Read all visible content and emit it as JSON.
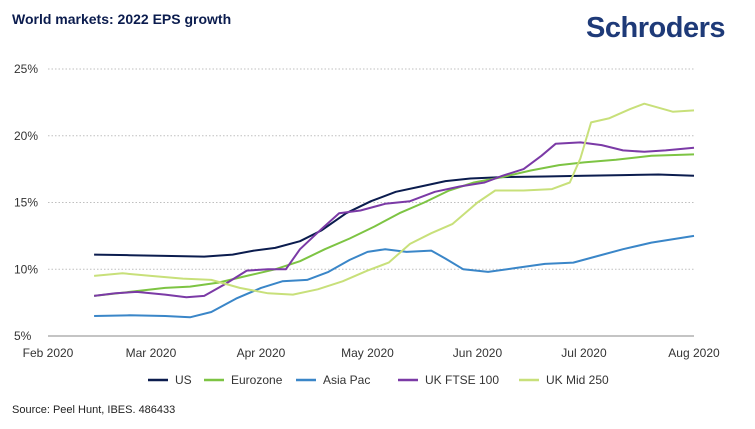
{
  "title": "World markets: 2022 EPS growth",
  "logo": "Schroders",
  "source": "Source: Peel Hunt, IBES. 486433",
  "chart_data": {
    "type": "line",
    "title": "World markets: 2022 EPS growth",
    "xlabel": "",
    "ylabel": "",
    "x_ticks": [
      "Feb 2020",
      "Mar 2020",
      "Apr 2020",
      "May 2020",
      "Jun 2020",
      "Jul 2020",
      "Aug 2020"
    ],
    "y_ticks": [
      "5%",
      "10%",
      "15%",
      "20%",
      "25%"
    ],
    "ylim": [
      5,
      25
    ],
    "xlim": [
      "2020-02-01",
      "2020-08-01"
    ],
    "grid": "horizontal",
    "legend_position": "bottom",
    "series": [
      {
        "name": "US",
        "color": "#0b1c4e",
        "points": [
          [
            "2020-02-14",
            11.1
          ],
          [
            "2020-02-24",
            11.05
          ],
          [
            "2020-03-05",
            11.0
          ],
          [
            "2020-03-16",
            10.95
          ],
          [
            "2020-03-24",
            11.1
          ],
          [
            "2020-03-30",
            11.4
          ],
          [
            "2020-04-05",
            11.6
          ],
          [
            "2020-04-12",
            12.1
          ],
          [
            "2020-04-18",
            12.9
          ],
          [
            "2020-04-25",
            14.2
          ],
          [
            "2020-05-02",
            15.1
          ],
          [
            "2020-05-09",
            15.8
          ],
          [
            "2020-05-16",
            16.2
          ],
          [
            "2020-05-23",
            16.6
          ],
          [
            "2020-05-30",
            16.8
          ],
          [
            "2020-06-08",
            16.9
          ],
          [
            "2020-06-20",
            16.95
          ],
          [
            "2020-07-01",
            17.0
          ],
          [
            "2020-07-12",
            17.05
          ],
          [
            "2020-07-22",
            17.1
          ],
          [
            "2020-08-01",
            17.0
          ]
        ]
      },
      {
        "name": "Eurozone",
        "color": "#7dc443",
        "points": [
          [
            "2020-02-14",
            8.0
          ],
          [
            "2020-02-24",
            8.3
          ],
          [
            "2020-03-05",
            8.6
          ],
          [
            "2020-03-12",
            8.7
          ],
          [
            "2020-03-20",
            9.0
          ],
          [
            "2020-03-28",
            9.5
          ],
          [
            "2020-04-05",
            10.0
          ],
          [
            "2020-04-12",
            10.6
          ],
          [
            "2020-04-19",
            11.5
          ],
          [
            "2020-04-26",
            12.3
          ],
          [
            "2020-05-03",
            13.2
          ],
          [
            "2020-05-10",
            14.2
          ],
          [
            "2020-05-17",
            15.0
          ],
          [
            "2020-05-24",
            15.9
          ],
          [
            "2020-05-31",
            16.5
          ],
          [
            "2020-06-08",
            16.9
          ],
          [
            "2020-06-16",
            17.4
          ],
          [
            "2020-06-24",
            17.8
          ],
          [
            "2020-07-01",
            18.0
          ],
          [
            "2020-07-10",
            18.2
          ],
          [
            "2020-07-20",
            18.5
          ],
          [
            "2020-08-01",
            18.6
          ]
        ]
      },
      {
        "name": "Asia Pac",
        "color": "#3a86c8",
        "points": [
          [
            "2020-02-14",
            6.5
          ],
          [
            "2020-02-24",
            6.55
          ],
          [
            "2020-03-05",
            6.5
          ],
          [
            "2020-03-12",
            6.4
          ],
          [
            "2020-03-18",
            6.8
          ],
          [
            "2020-03-25",
            7.8
          ],
          [
            "2020-04-01",
            8.6
          ],
          [
            "2020-04-07",
            9.1
          ],
          [
            "2020-04-14",
            9.2
          ],
          [
            "2020-04-20",
            9.8
          ],
          [
            "2020-04-26",
            10.7
          ],
          [
            "2020-05-01",
            11.3
          ],
          [
            "2020-05-06",
            11.5
          ],
          [
            "2020-05-12",
            11.3
          ],
          [
            "2020-05-19",
            11.4
          ],
          [
            "2020-05-23",
            10.8
          ],
          [
            "2020-05-28",
            10.0
          ],
          [
            "2020-06-04",
            9.8
          ],
          [
            "2020-06-12",
            10.1
          ],
          [
            "2020-06-20",
            10.4
          ],
          [
            "2020-06-28",
            10.5
          ],
          [
            "2020-07-05",
            11.0
          ],
          [
            "2020-07-12",
            11.5
          ],
          [
            "2020-07-20",
            12.0
          ],
          [
            "2020-08-01",
            12.5
          ]
        ]
      },
      {
        "name": "UK FTSE 100",
        "color": "#7b3aa6",
        "points": [
          [
            "2020-02-14",
            8.0
          ],
          [
            "2020-02-20",
            8.2
          ],
          [
            "2020-02-26",
            8.3
          ],
          [
            "2020-03-05",
            8.1
          ],
          [
            "2020-03-11",
            7.9
          ],
          [
            "2020-03-16",
            8.0
          ],
          [
            "2020-03-22",
            8.9
          ],
          [
            "2020-03-28",
            9.9
          ],
          [
            "2020-04-03",
            10.0
          ],
          [
            "2020-04-08",
            10.0
          ],
          [
            "2020-04-12",
            11.5
          ],
          [
            "2020-04-18",
            13.0
          ],
          [
            "2020-04-23",
            14.2
          ],
          [
            "2020-04-29",
            14.4
          ],
          [
            "2020-05-06",
            14.9
          ],
          [
            "2020-05-13",
            15.1
          ],
          [
            "2020-05-20",
            15.8
          ],
          [
            "2020-05-27",
            16.2
          ],
          [
            "2020-06-03",
            16.5
          ],
          [
            "2020-06-08",
            17.0
          ],
          [
            "2020-06-14",
            17.5
          ],
          [
            "2020-06-19",
            18.5
          ],
          [
            "2020-06-23",
            19.4
          ],
          [
            "2020-06-30",
            19.5
          ],
          [
            "2020-07-06",
            19.3
          ],
          [
            "2020-07-12",
            18.9
          ],
          [
            "2020-07-18",
            18.8
          ],
          [
            "2020-07-24",
            18.9
          ],
          [
            "2020-08-01",
            19.1
          ]
        ]
      },
      {
        "name": "UK Mid 250",
        "color": "#c8e07a",
        "points": [
          [
            "2020-02-14",
            9.5
          ],
          [
            "2020-02-22",
            9.7
          ],
          [
            "2020-03-01",
            9.5
          ],
          [
            "2020-03-10",
            9.3
          ],
          [
            "2020-03-18",
            9.2
          ],
          [
            "2020-03-26",
            8.6
          ],
          [
            "2020-04-03",
            8.2
          ],
          [
            "2020-04-10",
            8.1
          ],
          [
            "2020-04-17",
            8.5
          ],
          [
            "2020-04-24",
            9.1
          ],
          [
            "2020-05-01",
            9.9
          ],
          [
            "2020-05-07",
            10.5
          ],
          [
            "2020-05-13",
            11.9
          ],
          [
            "2020-05-19",
            12.7
          ],
          [
            "2020-05-25",
            13.4
          ],
          [
            "2020-06-01",
            15.0
          ],
          [
            "2020-06-06",
            15.9
          ],
          [
            "2020-06-14",
            15.9
          ],
          [
            "2020-06-22",
            16.0
          ],
          [
            "2020-06-27",
            16.5
          ],
          [
            "2020-06-30",
            18.3
          ],
          [
            "2020-07-03",
            21.0
          ],
          [
            "2020-07-08",
            21.3
          ],
          [
            "2020-07-14",
            22.0
          ],
          [
            "2020-07-18",
            22.4
          ],
          [
            "2020-07-22",
            22.1
          ],
          [
            "2020-07-26",
            21.8
          ],
          [
            "2020-08-01",
            21.9
          ]
        ]
      }
    ]
  }
}
